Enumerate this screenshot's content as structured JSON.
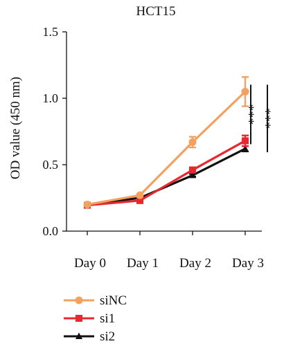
{
  "chart_data": {
    "type": "line",
    "title": "HCT15",
    "xlabel": "",
    "ylabel": "OD value (450 nm)",
    "categories": [
      "Day 0",
      "Day 1",
      "Day 2",
      "Day 3"
    ],
    "ylim": [
      0,
      1.5
    ],
    "yticks": [
      {
        "value": 0.0,
        "label": "0.0"
      },
      {
        "value": 0.5,
        "label": "0.5"
      },
      {
        "value": 1.0,
        "label": "1.0"
      },
      {
        "value": 1.5,
        "label": "1.5"
      }
    ],
    "grid": false,
    "legend_position": "bottom-left",
    "series": [
      {
        "name": "siNC",
        "color": "#f4a05f",
        "marker": "circle",
        "values": [
          0.2,
          0.27,
          0.67,
          1.05
        ],
        "errors": [
          0.01,
          0.01,
          0.04,
          0.11
        ]
      },
      {
        "name": "si1",
        "color": "#e8282e",
        "marker": "square",
        "values": [
          0.195,
          0.23,
          0.46,
          0.68
        ],
        "errors": [
          0.01,
          0.01,
          0.02,
          0.04
        ]
      },
      {
        "name": "si2",
        "color": "#111111",
        "marker": "triangle",
        "values": [
          0.2,
          0.25,
          0.42,
          0.62
        ],
        "errors": [
          0.01,
          0.01,
          0.01,
          0.02
        ]
      }
    ],
    "annotations": [
      {
        "text": "***",
        "series_pair": [
          "siNC",
          "si1"
        ]
      },
      {
        "text": "***",
        "series_pair": [
          "siNC",
          "si2"
        ]
      }
    ]
  }
}
